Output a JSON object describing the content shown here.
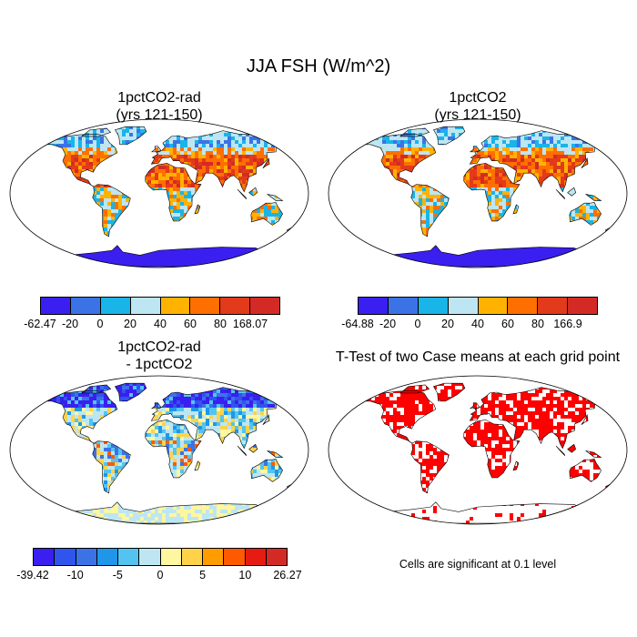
{
  "title": "JJA FSH (W/m^2)",
  "panels": {
    "top_left": {
      "title_line1": "1pctCO2-rad",
      "title_line2": "(yrs 121-150)"
    },
    "top_right": {
      "title_line1": "1pctCO2",
      "title_line2": "(yrs 121-150)"
    },
    "bottom_left": {
      "title_line1": "1pctCO2-rad",
      "title_line2": "- 1pctCO2"
    },
    "bottom_right": {
      "title": "T-Test of two Case means at each grid point",
      "note": "Cells are significant at 0.1 level"
    }
  },
  "colorbars": {
    "top_left": {
      "labels": [
        "-62.47",
        "-20",
        "0",
        "20",
        "40",
        "60",
        "80",
        "168.07"
      ],
      "colors": [
        "#3a1ff0",
        "#3b73e6",
        "#19b4e8",
        "#bde6f2",
        "#ffb300",
        "#ff6f00",
        "#e23a1a",
        "#d42a26"
      ]
    },
    "top_right": {
      "labels": [
        "-64.88",
        "-20",
        "0",
        "20",
        "40",
        "60",
        "80",
        "166.9"
      ],
      "colors": [
        "#3a1ff0",
        "#3b73e6",
        "#19b4e8",
        "#bde6f2",
        "#ffb300",
        "#ff6f00",
        "#e23a1a",
        "#d42a26"
      ]
    },
    "bottom_left": {
      "labels": [
        "-39.42",
        "-10",
        "-5",
        "0",
        "5",
        "10",
        "26.27"
      ],
      "colors": [
        "#3a1ff0",
        "#2f55ec",
        "#3b73e6",
        "#1f96ea",
        "#53c4f0",
        "#bde6f2",
        "#fff6a0",
        "#ffd24a",
        "#ff9d00",
        "#ff5a00",
        "#e61c12",
        "#d42a26"
      ]
    }
  }
}
